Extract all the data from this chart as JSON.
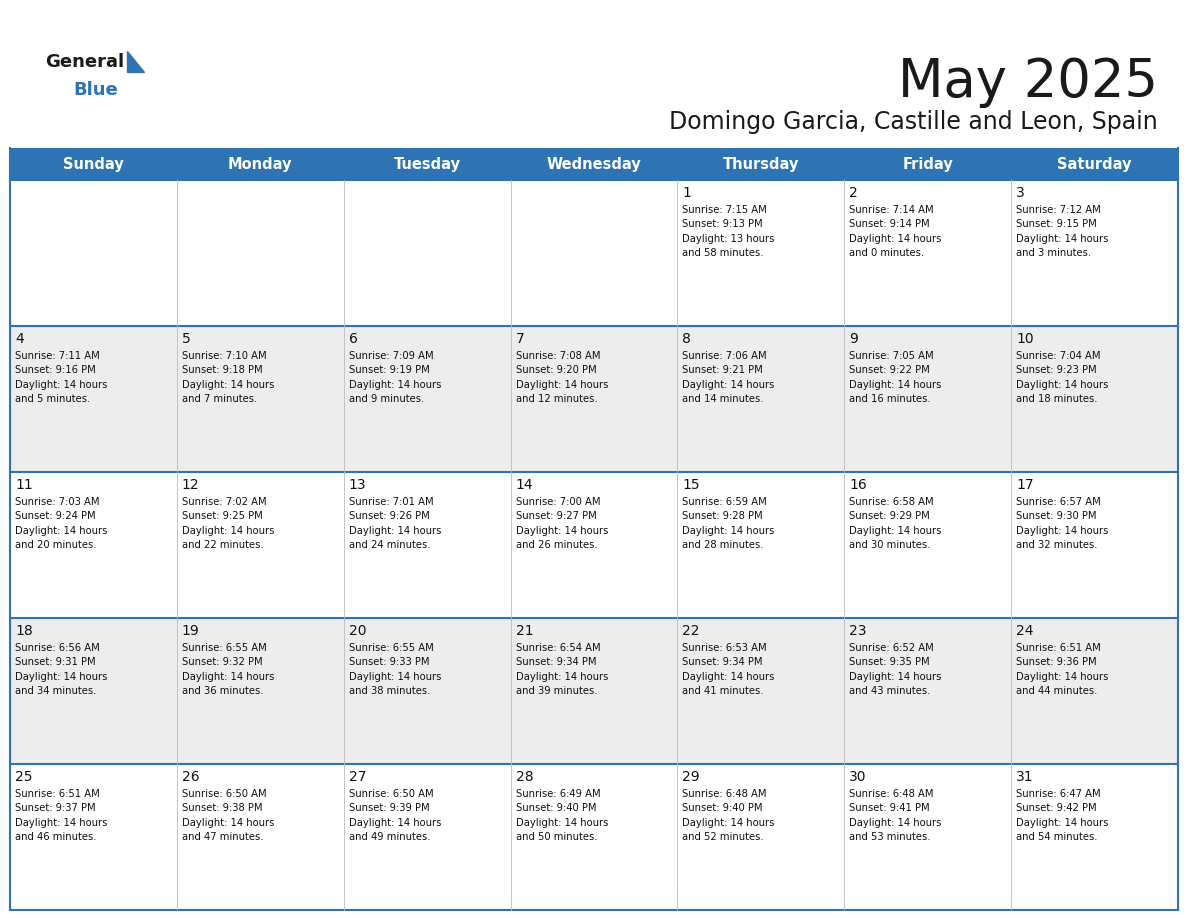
{
  "title": "May 2025",
  "subtitle": "Domingo Garcia, Castille and Leon, Spain",
  "header_bg": "#2E74B5",
  "header_text_color": "#FFFFFF",
  "cell_bg_light": "#EDEDED",
  "cell_bg_white": "#FFFFFF",
  "title_color": "#1a1a1a",
  "subtitle_color": "#1a1a1a",
  "day_names": [
    "Sunday",
    "Monday",
    "Tuesday",
    "Wednesday",
    "Thursday",
    "Friday",
    "Saturday"
  ],
  "weeks": [
    [
      {
        "day": "",
        "text": ""
      },
      {
        "day": "",
        "text": ""
      },
      {
        "day": "",
        "text": ""
      },
      {
        "day": "",
        "text": ""
      },
      {
        "day": "1",
        "text": "Sunrise: 7:15 AM\nSunset: 9:13 PM\nDaylight: 13 hours\nand 58 minutes."
      },
      {
        "day": "2",
        "text": "Sunrise: 7:14 AM\nSunset: 9:14 PM\nDaylight: 14 hours\nand 0 minutes."
      },
      {
        "day": "3",
        "text": "Sunrise: 7:12 AM\nSunset: 9:15 PM\nDaylight: 14 hours\nand 3 minutes."
      }
    ],
    [
      {
        "day": "4",
        "text": "Sunrise: 7:11 AM\nSunset: 9:16 PM\nDaylight: 14 hours\nand 5 minutes."
      },
      {
        "day": "5",
        "text": "Sunrise: 7:10 AM\nSunset: 9:18 PM\nDaylight: 14 hours\nand 7 minutes."
      },
      {
        "day": "6",
        "text": "Sunrise: 7:09 AM\nSunset: 9:19 PM\nDaylight: 14 hours\nand 9 minutes."
      },
      {
        "day": "7",
        "text": "Sunrise: 7:08 AM\nSunset: 9:20 PM\nDaylight: 14 hours\nand 12 minutes."
      },
      {
        "day": "8",
        "text": "Sunrise: 7:06 AM\nSunset: 9:21 PM\nDaylight: 14 hours\nand 14 minutes."
      },
      {
        "day": "9",
        "text": "Sunrise: 7:05 AM\nSunset: 9:22 PM\nDaylight: 14 hours\nand 16 minutes."
      },
      {
        "day": "10",
        "text": "Sunrise: 7:04 AM\nSunset: 9:23 PM\nDaylight: 14 hours\nand 18 minutes."
      }
    ],
    [
      {
        "day": "11",
        "text": "Sunrise: 7:03 AM\nSunset: 9:24 PM\nDaylight: 14 hours\nand 20 minutes."
      },
      {
        "day": "12",
        "text": "Sunrise: 7:02 AM\nSunset: 9:25 PM\nDaylight: 14 hours\nand 22 minutes."
      },
      {
        "day": "13",
        "text": "Sunrise: 7:01 AM\nSunset: 9:26 PM\nDaylight: 14 hours\nand 24 minutes."
      },
      {
        "day": "14",
        "text": "Sunrise: 7:00 AM\nSunset: 9:27 PM\nDaylight: 14 hours\nand 26 minutes."
      },
      {
        "day": "15",
        "text": "Sunrise: 6:59 AM\nSunset: 9:28 PM\nDaylight: 14 hours\nand 28 minutes."
      },
      {
        "day": "16",
        "text": "Sunrise: 6:58 AM\nSunset: 9:29 PM\nDaylight: 14 hours\nand 30 minutes."
      },
      {
        "day": "17",
        "text": "Sunrise: 6:57 AM\nSunset: 9:30 PM\nDaylight: 14 hours\nand 32 minutes."
      }
    ],
    [
      {
        "day": "18",
        "text": "Sunrise: 6:56 AM\nSunset: 9:31 PM\nDaylight: 14 hours\nand 34 minutes."
      },
      {
        "day": "19",
        "text": "Sunrise: 6:55 AM\nSunset: 9:32 PM\nDaylight: 14 hours\nand 36 minutes."
      },
      {
        "day": "20",
        "text": "Sunrise: 6:55 AM\nSunset: 9:33 PM\nDaylight: 14 hours\nand 38 minutes."
      },
      {
        "day": "21",
        "text": "Sunrise: 6:54 AM\nSunset: 9:34 PM\nDaylight: 14 hours\nand 39 minutes."
      },
      {
        "day": "22",
        "text": "Sunrise: 6:53 AM\nSunset: 9:34 PM\nDaylight: 14 hours\nand 41 minutes."
      },
      {
        "day": "23",
        "text": "Sunrise: 6:52 AM\nSunset: 9:35 PM\nDaylight: 14 hours\nand 43 minutes."
      },
      {
        "day": "24",
        "text": "Sunrise: 6:51 AM\nSunset: 9:36 PM\nDaylight: 14 hours\nand 44 minutes."
      }
    ],
    [
      {
        "day": "25",
        "text": "Sunrise: 6:51 AM\nSunset: 9:37 PM\nDaylight: 14 hours\nand 46 minutes."
      },
      {
        "day": "26",
        "text": "Sunrise: 6:50 AM\nSunset: 9:38 PM\nDaylight: 14 hours\nand 47 minutes."
      },
      {
        "day": "27",
        "text": "Sunrise: 6:50 AM\nSunset: 9:39 PM\nDaylight: 14 hours\nand 49 minutes."
      },
      {
        "day": "28",
        "text": "Sunrise: 6:49 AM\nSunset: 9:40 PM\nDaylight: 14 hours\nand 50 minutes."
      },
      {
        "day": "29",
        "text": "Sunrise: 6:48 AM\nSunset: 9:40 PM\nDaylight: 14 hours\nand 52 minutes."
      },
      {
        "day": "30",
        "text": "Sunrise: 6:48 AM\nSunset: 9:41 PM\nDaylight: 14 hours\nand 53 minutes."
      },
      {
        "day": "31",
        "text": "Sunrise: 6:47 AM\nSunset: 9:42 PM\nDaylight: 14 hours\nand 54 minutes."
      }
    ]
  ],
  "logo_text1": "General",
  "logo_text2": "Blue",
  "logo_color1": "#1a1a1a",
  "logo_color2": "#2E74B5",
  "logo_triangle_color": "#2E74B5",
  "fig_width": 11.88,
  "fig_height": 9.18,
  "dpi": 100
}
